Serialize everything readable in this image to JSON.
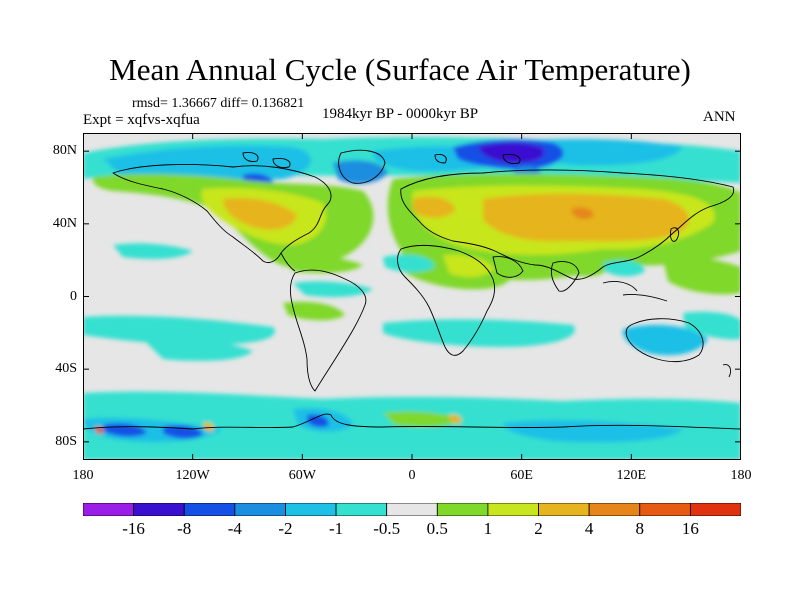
{
  "title": "Mean Annual Cycle (Surface Air Temperature)",
  "stats": "rmsd= 1.36667 diff= 0.136821",
  "experiment": "Expt = xqfvs-xqfua",
  "period": "1984kyr BP - 0000kyr BP",
  "season": "ANN",
  "y_axis": {
    "ticks": [
      "80N",
      "40N",
      "0",
      "40S",
      "80S"
    ],
    "values": [
      80,
      40,
      0,
      -40,
      -80
    ],
    "range": [
      -90,
      90
    ]
  },
  "x_axis": {
    "ticks": [
      "180",
      "120W",
      "60W",
      "0",
      "60E",
      "120E",
      "180"
    ],
    "values": [
      -180,
      -120,
      -60,
      0,
      60,
      120,
      180
    ],
    "range": [
      -180,
      180
    ]
  },
  "colorbar": {
    "labels": [
      "-16",
      "-8",
      "-4",
      "-2",
      "-1",
      "-0.5",
      "0.5",
      "1",
      "2",
      "4",
      "8",
      "16"
    ],
    "colors": [
      "#9b1ee8",
      "#3a0fd0",
      "#1450e6",
      "#1a8ee0",
      "#1fc0e6",
      "#34e0d0",
      "#e6e6e6",
      "#7fd82a",
      "#c8e61e",
      "#e6b41e",
      "#e6861a",
      "#e65a14",
      "#e0320f"
    ]
  },
  "map": {
    "background_color": "#e6e6e6",
    "projection": "cylindrical-equidistant",
    "field": "surface air temperature difference",
    "units_shown": "none"
  }
}
